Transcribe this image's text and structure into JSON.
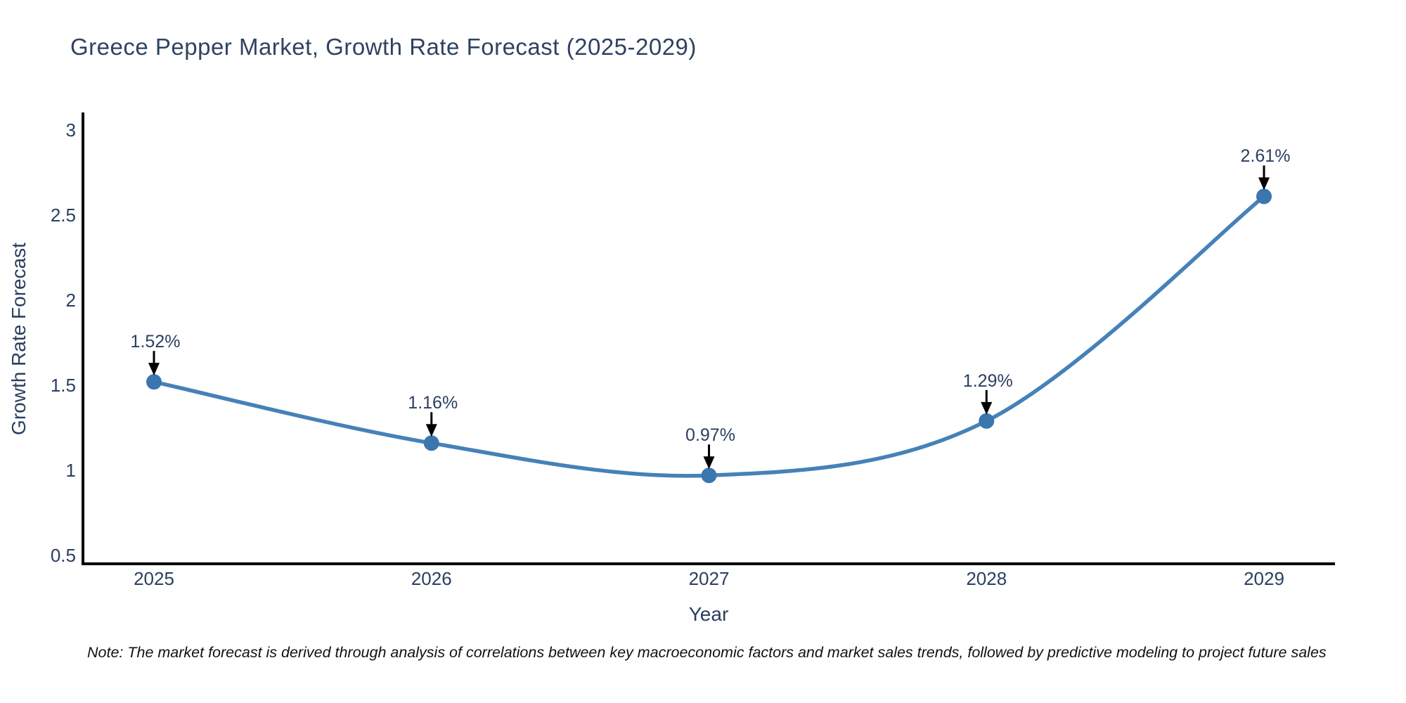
{
  "chart_data": {
    "type": "line",
    "title": "Greece Pepper Market, Growth Rate Forecast (2025-2029)",
    "xlabel": "Year",
    "ylabel": "Growth Rate Forecast",
    "x": [
      2025,
      2026,
      2027,
      2028,
      2029
    ],
    "values": [
      1.52,
      1.16,
      0.97,
      1.29,
      2.61
    ],
    "point_labels": [
      "1.52%",
      "1.16%",
      "0.97%",
      "1.29%",
      "2.61%"
    ],
    "ylim": [
      0.5,
      3
    ],
    "yticks": [
      0.5,
      1,
      1.5,
      2,
      2.5,
      3
    ],
    "grid": false,
    "legend": "none",
    "line_color": "#4681b8",
    "marker_color": "#3b76ae",
    "axis_line_color": "#000000",
    "arrow_color": "#000000",
    "text_color": "#2a3f5f"
  },
  "note": {
    "text": "Note: The market forecast is derived through analysis of correlations between key macroeconomic factors and market sales trends, followed by predictive modeling to project future sales"
  }
}
